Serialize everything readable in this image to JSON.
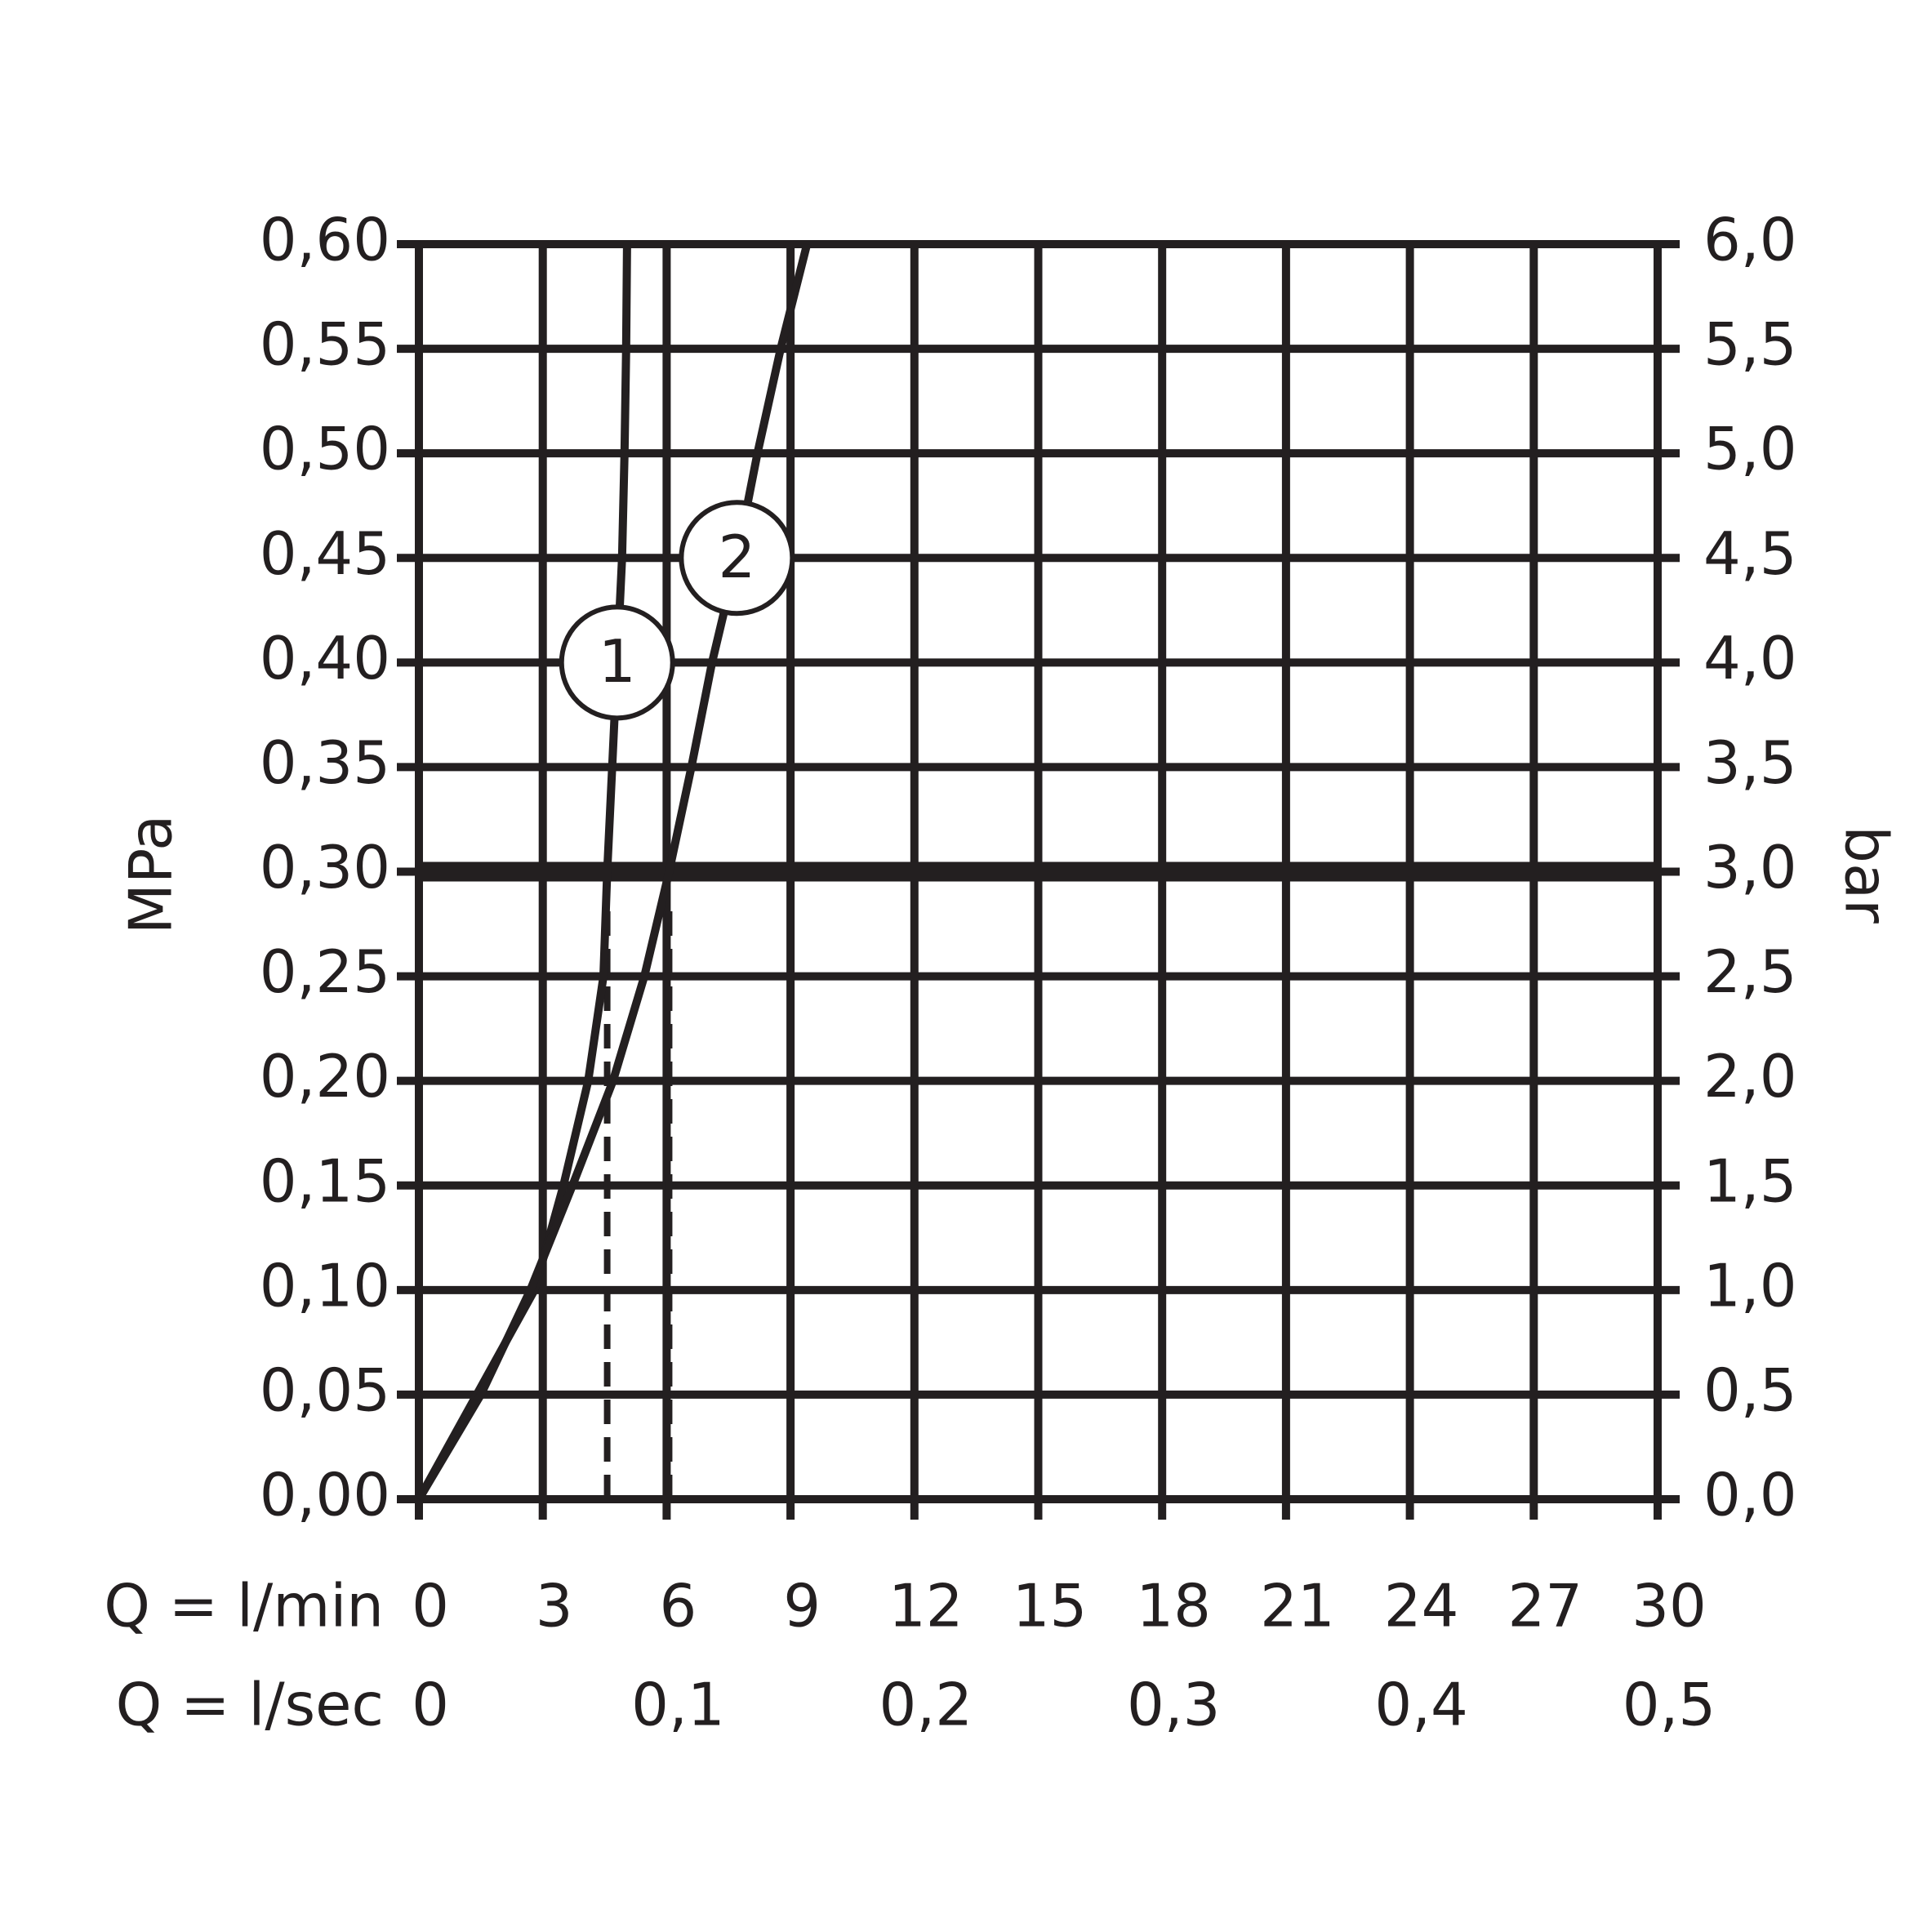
{
  "chart_data": {
    "type": "line",
    "y_label": "MPa",
    "y2_label": "bar",
    "x_label": "Q = l/min",
    "x2_label": "Q = l/sec",
    "xlim": [
      0,
      30
    ],
    "xticks": [
      0,
      3,
      6,
      9,
      12,
      15,
      18,
      21,
      24,
      27,
      30
    ],
    "x2lim": [
      0,
      0.5
    ],
    "x2ticks": [
      0,
      {
        "value": 0.1,
        "label": "0,1"
      },
      {
        "value": 0.2,
        "label": "0,2"
      },
      {
        "value": 0.3,
        "label": "0,3"
      },
      {
        "value": 0.4,
        "label": "0,4"
      },
      {
        "value": 0.5,
        "label": "0,5"
      }
    ],
    "ylim": [
      0,
      0.6
    ],
    "yticks": [
      {
        "value": 0,
        "label": "0,00"
      },
      {
        "value": 0.05,
        "label": "0,05"
      },
      {
        "value": 0.1,
        "label": "0,10"
      },
      {
        "value": 0.15,
        "label": "0,15"
      },
      {
        "value": 0.2,
        "label": "0,20"
      },
      {
        "value": 0.25,
        "label": "0,25"
      },
      {
        "value": 0.3,
        "label": "0,30"
      },
      {
        "value": 0.35,
        "label": "0,35"
      },
      {
        "value": 0.4,
        "label": "0,40"
      },
      {
        "value": 0.45,
        "label": "0,45"
      },
      {
        "value": 0.5,
        "label": "0,50"
      },
      {
        "value": 0.55,
        "label": "0,55"
      },
      {
        "value": 0.6,
        "label": "0,60"
      }
    ],
    "y2lim": [
      0,
      6
    ],
    "y2ticks": [
      {
        "value": 0,
        "label": "0,0"
      },
      {
        "value": 0.5,
        "label": "0,5"
      },
      {
        "value": 1,
        "label": "1,0"
      },
      {
        "value": 1.5,
        "label": "1,5"
      },
      {
        "value": 2,
        "label": "2,0"
      },
      {
        "value": 2.5,
        "label": "2,5"
      },
      {
        "value": 3,
        "label": "3,0"
      },
      {
        "value": 3.5,
        "label": "3,5"
      },
      {
        "value": 4,
        "label": "4,0"
      },
      {
        "value": 4.5,
        "label": "4,5"
      },
      {
        "value": 5,
        "label": "5,0"
      },
      {
        "value": 5.5,
        "label": "5,5"
      },
      {
        "value": 6,
        "label": "6,0"
      }
    ],
    "grid": true,
    "reference_y": 0.3,
    "reference_x": [
      4.56,
      6.06
    ],
    "series": [
      {
        "name": "1",
        "color": "#231f20",
        "x": [
          0,
          1.4,
          2.8,
          3.5,
          4.1,
          4.47,
          4.56,
          4.68,
          4.8,
          4.92,
          4.98,
          5.02,
          5.04
        ],
        "values": [
          0,
          0.05,
          0.1,
          0.15,
          0.2,
          0.25,
          0.3,
          0.35,
          0.4,
          0.45,
          0.5,
          0.55,
          0.6
        ]
      },
      {
        "name": "2",
        "color": "#231f20",
        "x": [
          0,
          1.5,
          2.7,
          3.72,
          4.7,
          5.46,
          6.06,
          6.6,
          7.1,
          7.7,
          8.2,
          8.76,
          9.4
        ],
        "values": [
          0,
          0.05,
          0.1,
          0.15,
          0.2,
          0.25,
          0.3,
          0.35,
          0.4,
          0.45,
          0.5,
          0.55,
          0.6
        ]
      }
    ]
  }
}
